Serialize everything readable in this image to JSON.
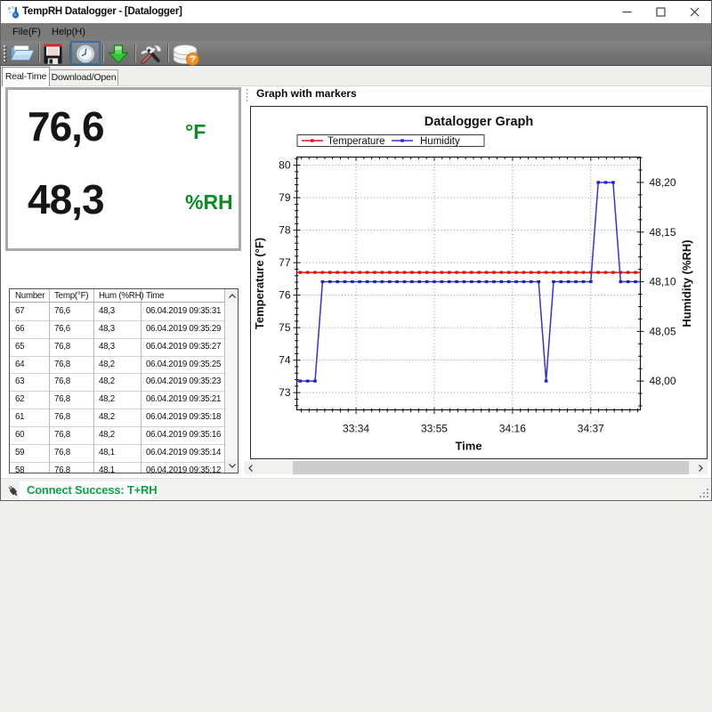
{
  "window": {
    "title": "TempRH Datalogger - [Datalogger]",
    "icon": "thermometer-drop-icon",
    "controls": {
      "minimize": "minimize-icon",
      "maximize": "maximize-icon",
      "close": "close-icon"
    }
  },
  "menu": {
    "items": [
      {
        "label": "File(F)"
      },
      {
        "label": "Help(H)"
      }
    ]
  },
  "toolbar": {
    "buttons": [
      {
        "name": "open",
        "icon": "folder-open-icon"
      },
      {
        "name": "save",
        "icon": "floppy-disk-icon"
      },
      {
        "name": "realtime-clock",
        "icon": "clock-icon",
        "selected": true
      },
      {
        "name": "download",
        "icon": "green-down-arrow-icon"
      },
      {
        "name": "settings",
        "icon": "tools-icon"
      },
      {
        "name": "data-query",
        "icon": "database-question-icon"
      }
    ]
  },
  "tabs": [
    {
      "label": "Real-Time",
      "active": true
    },
    {
      "label": "Download/Open",
      "active": false
    }
  ],
  "readout": {
    "temperature": {
      "value": "76,6",
      "unit": "°F"
    },
    "humidity": {
      "value": "48,3",
      "unit": "%RH"
    }
  },
  "table": {
    "headers": [
      "Number",
      "Temp(°F)",
      "Hum (%RH)",
      "Time"
    ],
    "rows": [
      [
        "67",
        "76,6",
        "48,3",
        "06.04.2019 09:35:31"
      ],
      [
        "66",
        "76,6",
        "48,3",
        "06.04.2019 09:35:29"
      ],
      [
        "65",
        "76,8",
        "48,3",
        "06.04.2019 09:35:27"
      ],
      [
        "64",
        "76,8",
        "48,2",
        "06.04.2019 09:35:25"
      ],
      [
        "63",
        "76,8",
        "48,2",
        "06.04.2019 09:35:23"
      ],
      [
        "62",
        "76,8",
        "48,2",
        "06.04.2019 09:35:21"
      ],
      [
        "61",
        "76,8",
        "48,2",
        "06.04.2019 09:35:18"
      ],
      [
        "60",
        "76,8",
        "48,2",
        "06.04.2019 09:35:16"
      ],
      [
        "59",
        "76,8",
        "48,1",
        "06.04.2019 09:35:14"
      ],
      [
        "58",
        "76,8",
        "48,1",
        "06.04.2019 09:35:12"
      ]
    ]
  },
  "graph_panel": {
    "label": "Graph with markers"
  },
  "chart_data": {
    "type": "line",
    "title": "Datalogger Graph",
    "xlabel": "Time",
    "grid": "dotted",
    "legend_position": "top-left",
    "x": [
      "33:19",
      "33:21",
      "33:23",
      "33:25",
      "33:27",
      "33:29",
      "33:31",
      "33:33",
      "33:35",
      "33:37",
      "33:39",
      "33:41",
      "33:43",
      "33:45",
      "33:47",
      "33:49",
      "33:51",
      "33:53",
      "33:55",
      "33:57",
      "33:59",
      "34:01",
      "34:03",
      "34:05",
      "34:07",
      "34:09",
      "34:11",
      "34:13",
      "34:15",
      "34:17",
      "34:19",
      "34:21",
      "34:23",
      "34:25",
      "34:27",
      "34:29",
      "34:31",
      "34:33",
      "34:35",
      "34:37",
      "34:39",
      "34:41",
      "34:43",
      "34:45",
      "34:47",
      "34:49"
    ],
    "x_ticks": [
      "33:34",
      "33:55",
      "34:16",
      "34:37"
    ],
    "x_range_seconds": [
      1998.1,
      2090.3
    ],
    "series": [
      {
        "name": "Temperature",
        "axis": "left",
        "color": "#e31313",
        "marker_color": "#d80f0f",
        "values": [
          76.7,
          76.7,
          76.7,
          76.7,
          76.7,
          76.7,
          76.7,
          76.7,
          76.7,
          76.7,
          76.7,
          76.7,
          76.7,
          76.7,
          76.7,
          76.7,
          76.7,
          76.7,
          76.7,
          76.7,
          76.7,
          76.7,
          76.7,
          76.7,
          76.7,
          76.7,
          76.7,
          76.7,
          76.7,
          76.7,
          76.7,
          76.7,
          76.7,
          76.7,
          76.7,
          76.7,
          76.7,
          76.7,
          76.7,
          76.7,
          76.7,
          76.7,
          76.7,
          76.7,
          76.7,
          76.7
        ]
      },
      {
        "name": "Humidity",
        "axis": "right",
        "color": "#3434d3",
        "marker_color": "#2121bb",
        "values": [
          48.0,
          48.0,
          48.0,
          48.1,
          48.1,
          48.1,
          48.1,
          48.1,
          48.1,
          48.1,
          48.1,
          48.1,
          48.1,
          48.1,
          48.1,
          48.1,
          48.1,
          48.1,
          48.1,
          48.1,
          48.1,
          48.1,
          48.1,
          48.1,
          48.1,
          48.1,
          48.1,
          48.1,
          48.1,
          48.1,
          48.1,
          48.1,
          48.1,
          48.0,
          48.1,
          48.1,
          48.1,
          48.1,
          48.1,
          48.1,
          48.2,
          48.2,
          48.2,
          48.1,
          48.1,
          48.1
        ]
      }
    ],
    "y_left": {
      "label": "Temperature (°F)",
      "ticks": [
        73,
        74,
        75,
        76,
        77,
        78,
        79,
        80
      ],
      "range": [
        72.47,
        80.25
      ],
      "minor_step": 0.2
    },
    "y_right": {
      "label": "Humidity (%RH)",
      "ticks": [
        48.0,
        48.05,
        48.1,
        48.15,
        48.2
      ],
      "tick_labels": [
        "48,00",
        "48,05",
        "48,10",
        "48,15",
        "48,20"
      ],
      "range": [
        47.971,
        48.2255
      ],
      "minor_step": 0.0125
    }
  },
  "status_bar": {
    "message": "Connect Success: T+RH",
    "icon": "connector-plug-icon",
    "resize_grip": "resize-grip-icon"
  },
  "icons": {
    "table_scrollbar": [
      "chevron-up-icon",
      "chevron-down-icon"
    ],
    "graph_scrollbar": [
      "chevron-left-icon",
      "chevron-right-icon"
    ]
  },
  "colors": {
    "unit_green": "#0a8c22",
    "status_green": "#0ba342",
    "chrome_gray": "#7b7b7b",
    "selection_blue": "#3a6ea5",
    "temperature_red": "#e31313",
    "humidity_blue": "#3434d3"
  }
}
